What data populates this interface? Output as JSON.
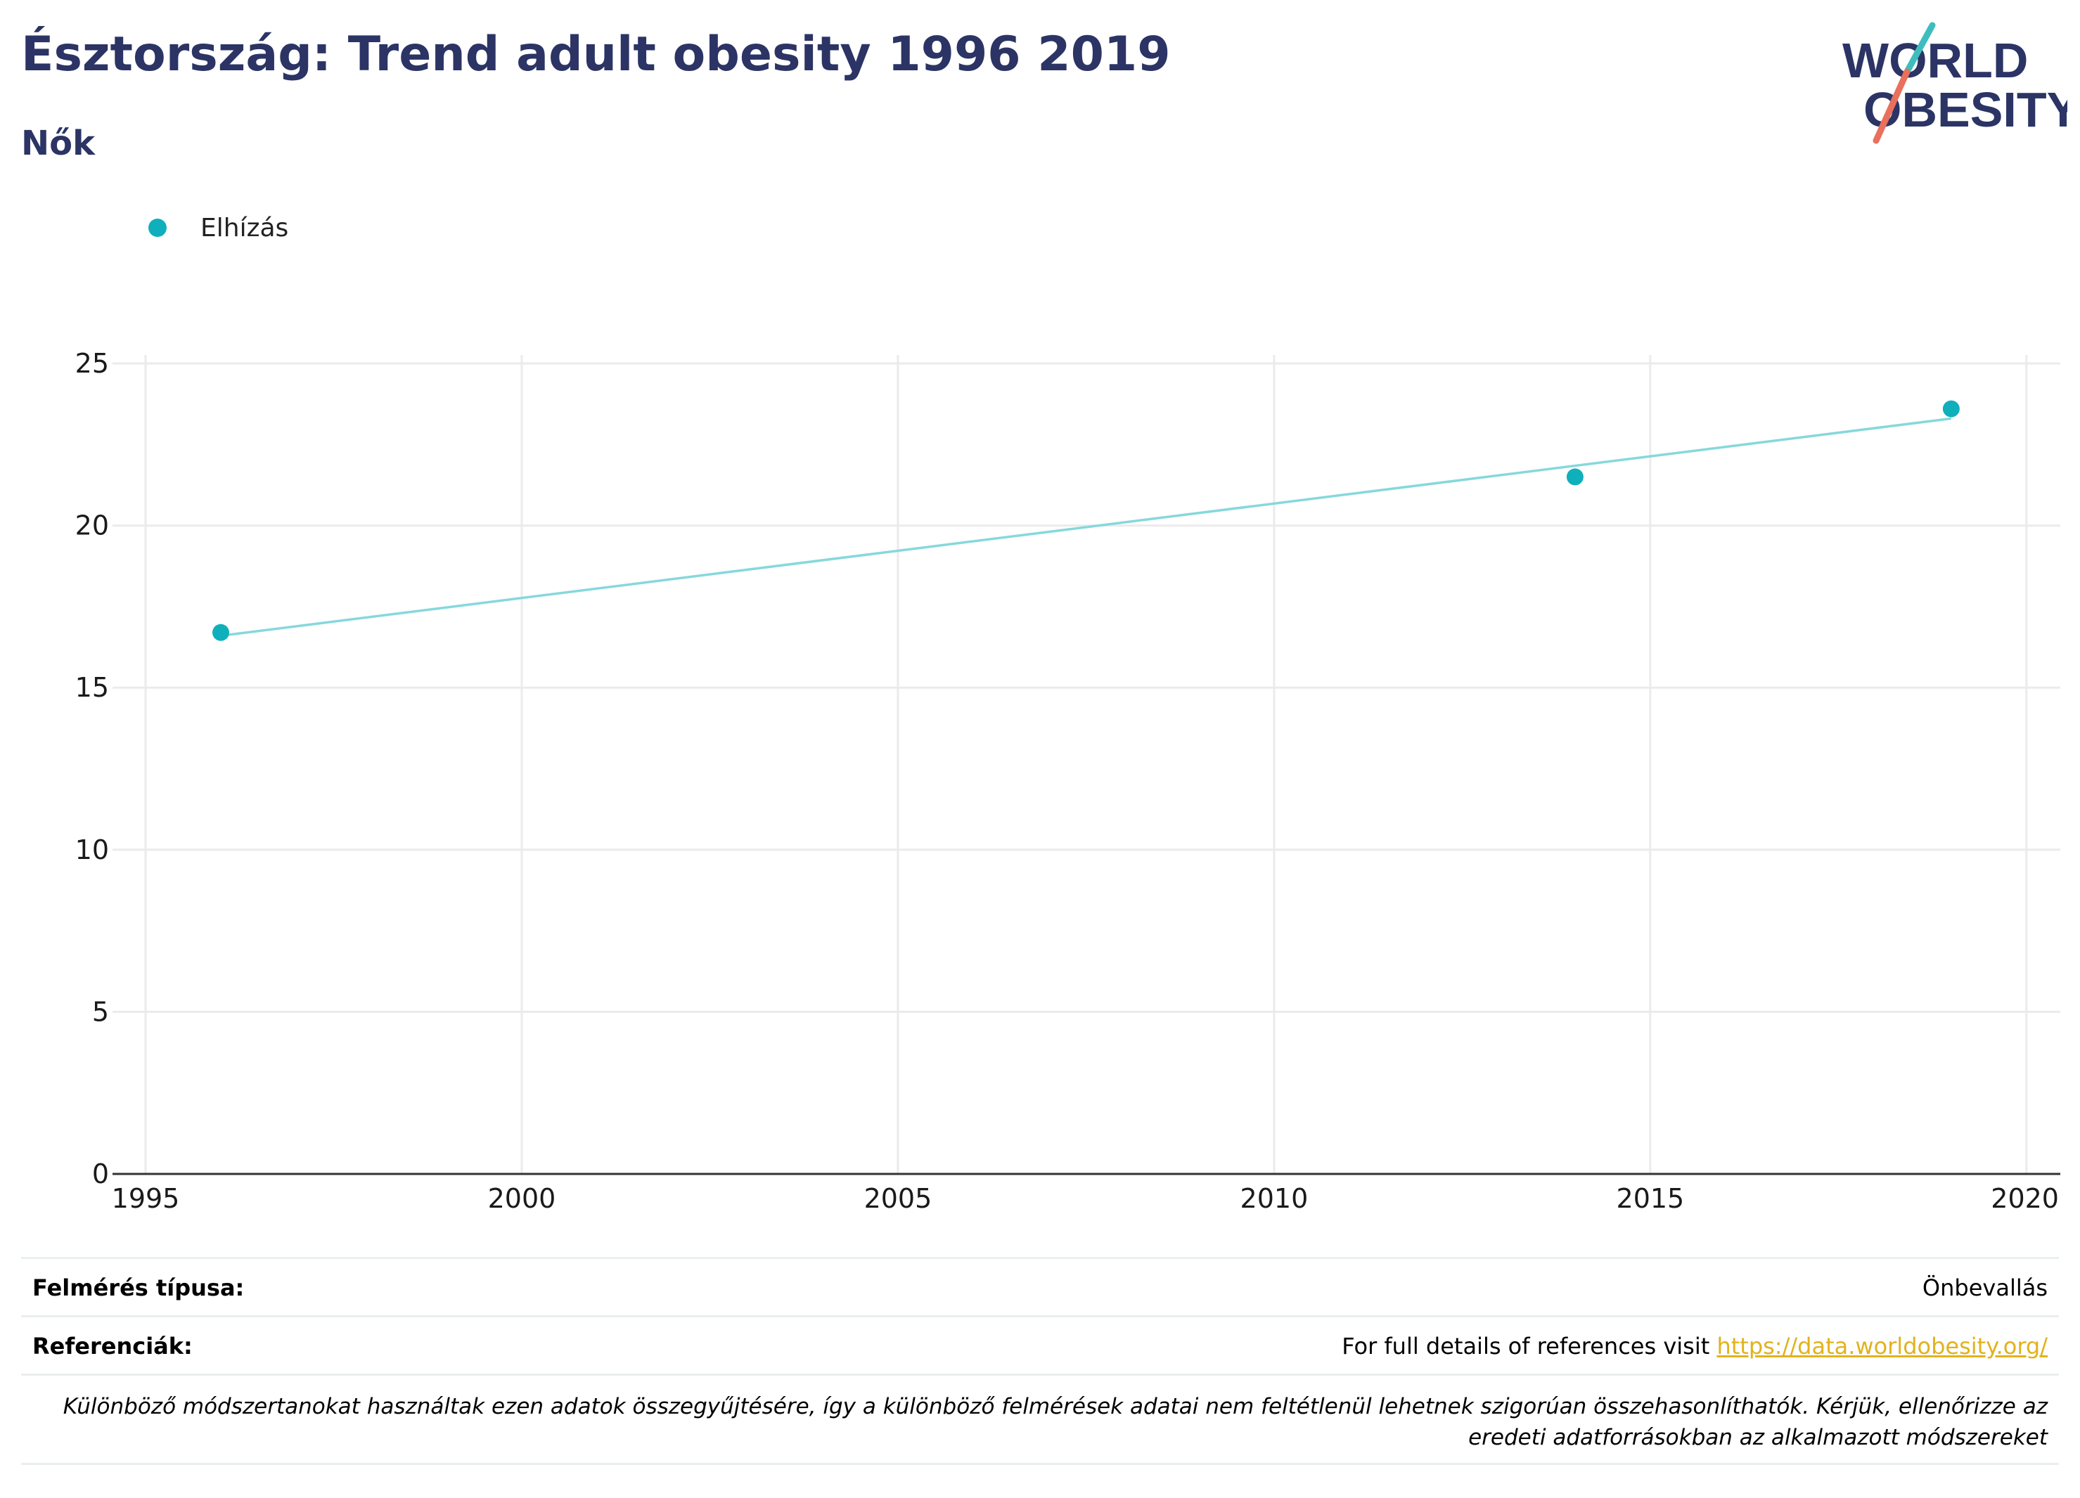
{
  "header": {
    "title": "Észtország: Trend adult obesity 1996 2019",
    "subtitle": "Nők"
  },
  "logo": {
    "line1": "WORLD",
    "line2": "OBESITY"
  },
  "colors": {
    "title": "#2b3464",
    "series": "#0fb0bb",
    "trend": "#86d8dc",
    "grid": "#ebebeb",
    "link": "#e2b21c",
    "logo_teal": "#3fbdbd",
    "logo_coral": "#e8705c"
  },
  "chart_data": {
    "type": "scatter",
    "title": "Észtország: Trend adult obesity 1996 2019",
    "subtitle": "Nők",
    "legend": {
      "position": "top-left",
      "entries": [
        "Elhízás"
      ]
    },
    "series": [
      {
        "name": "Elhízás",
        "x": [
          1996,
          2014,
          2019
        ],
        "y": [
          16.7,
          21.5,
          23.6
        ]
      }
    ],
    "trendline": {
      "x": [
        1996,
        2019
      ],
      "y": [
        16.6,
        23.3
      ]
    },
    "xlim": [
      1995,
      2020.45
    ],
    "ylim": [
      0,
      25
    ],
    "xticks": [
      1995,
      2000,
      2005,
      2010,
      2015,
      2020
    ],
    "yticks": [
      0,
      5,
      10,
      15,
      20,
      25
    ],
    "grid": true,
    "xlabel": "",
    "ylabel": ""
  },
  "footer": {
    "survey_type_label": "Felmérés típusa:",
    "survey_type_value": "Önbevallás",
    "references_label": "Referenciák:",
    "references_text": "For full details of references visit",
    "references_link": "https://data.worldobesity.org/",
    "note": "Különböző módszertanokat használtak ezen adatok összegyűjtésére, így a különböző felmérések adatai nem feltétlenül lehetnek szigorúan összehasonlíthatók. Kérjük, ellenőrizze az eredeti adatforrásokban az alkalmazott módszereket"
  }
}
